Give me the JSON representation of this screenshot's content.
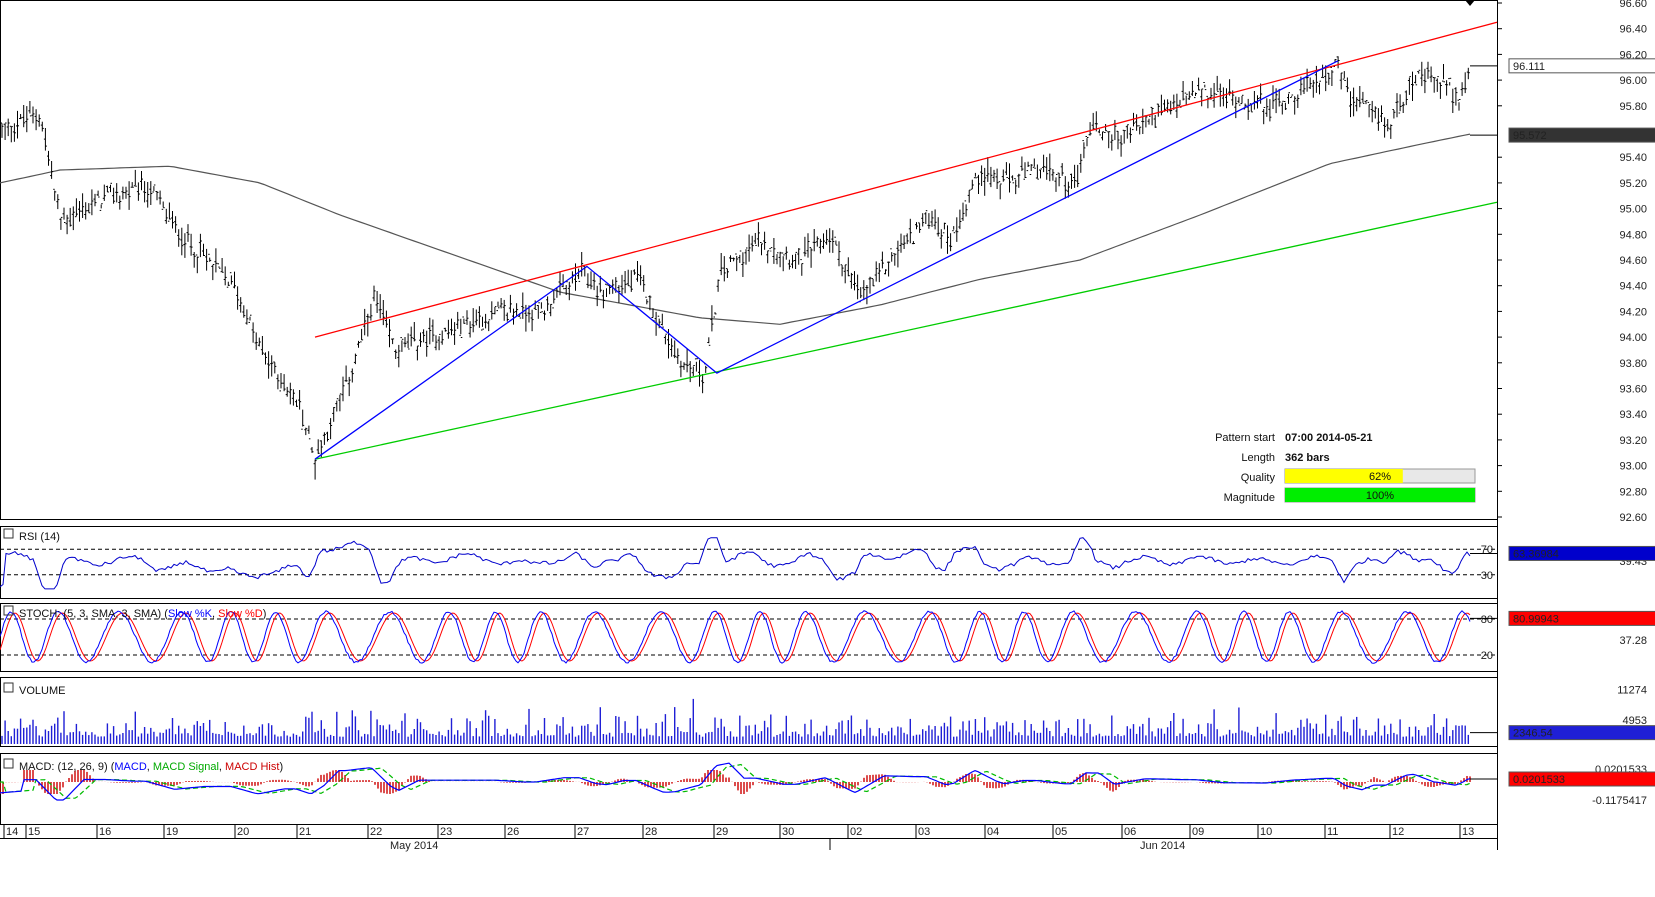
{
  "chart_data": {
    "type": "candlestick",
    "price": {
      "y_ticks": [
        "96.60",
        "96.40",
        "96.20",
        "96.00",
        "95.80",
        "95.40",
        "95.20",
        "95.00",
        "94.80",
        "94.60",
        "94.40",
        "94.20",
        "94.00",
        "93.80",
        "93.60",
        "93.40",
        "93.20",
        "93.00",
        "92.80",
        "92.60"
      ],
      "ylim": [
        92.6,
        96.6
      ],
      "last_price": "96.111",
      "ma_value": "95.572",
      "pattern_lines": {
        "resistance": [
          [
            0.0,
            94.0
          ],
          [
            1.0,
            96.45
          ]
        ],
        "support": [
          [
            0.0,
            93.05
          ],
          [
            1.0,
            95.05
          ]
        ],
        "zigzag": [
          [
            0.0,
            93.05
          ],
          [
            0.23,
            94.55
          ],
          [
            0.34,
            93.72
          ],
          [
            1.0,
            96.15
          ]
        ]
      }
    },
    "pattern_info": {
      "start_label": "Pattern start",
      "start_value": "07:00 2014-05-21",
      "length_label": "Length",
      "length_value": "362 bars",
      "quality_label": "Quality",
      "quality_value": 62,
      "quality_text": "62%",
      "magnitude_label": "Magnitude",
      "magnitude_value": 100,
      "magnitude_text": "100%"
    },
    "rsi": {
      "title": "RSI (14)",
      "levels": [
        "70",
        "30"
      ],
      "mid_label": "39.43",
      "value": "63.36984"
    },
    "stoch": {
      "title_prefix": "STOCH: (5, 3, SMA, 3, SMA)",
      "k_label": "Slow %K",
      "d_label": "Slow %D",
      "levels": [
        "80",
        "20"
      ],
      "mid_label": "37.28",
      "value": "80.99943"
    },
    "volume": {
      "title": "VOLUME",
      "ticks": [
        "11274",
        "4953"
      ],
      "value": "2346.54"
    },
    "macd": {
      "title_prefix": "MACD: (12, 26, 9)",
      "macd_label": "MACD",
      "signal_label": "MACD Signal",
      "hist_label": "MACD Hist",
      "ticks": [
        "0.0201533",
        "-0.1175417"
      ],
      "value": "0.0201533"
    },
    "x_axis": {
      "day_labels": [
        "14",
        "15",
        "16",
        "19",
        "20",
        "21",
        "22",
        "23",
        "26",
        "27",
        "28",
        "29",
        "30",
        "02",
        "03",
        "04",
        "05",
        "06",
        "09",
        "10",
        "11",
        "12",
        "13"
      ],
      "month_labels": [
        "May 2014",
        "Jun 2014"
      ]
    },
    "colors": {
      "resistance": "#ff0000",
      "support": "#00cc00",
      "zigzag": "#0000ff",
      "ma": "#555555",
      "rsi": "#0000cc",
      "stoch_k": "#0000ff",
      "stoch_d": "#ff0000",
      "volume": "#1f1fd6",
      "macd": "#0000ff",
      "signal": "#00bb00",
      "hist": "#cc0000",
      "quality": "#ffff00",
      "magnitude": "#00ee00"
    }
  }
}
